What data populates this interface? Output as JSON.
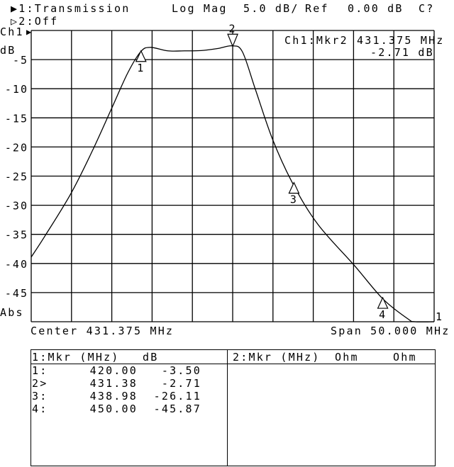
{
  "header": {
    "trace1": "▶1:Transmission",
    "format": "Log Mag",
    "scale": "5.0 dB/",
    "ref_label": "Ref",
    "ref_value": "0.00 dB",
    "status": "C?",
    "trace2": "▷2:Off"
  },
  "axis": {
    "channel": "Ch1",
    "ref_arrow": "▶",
    "unit": "dB",
    "mode": "Abs",
    "center": "Center 431.375 MHz",
    "span": "Span 50.000 MHz"
  },
  "readout": {
    "label": "Ch1:Mkr2",
    "freq": "431.375 MHz",
    "value": "-2.71 dB"
  },
  "trace_end_label": "1",
  "table": {
    "left_header": {
      "mkr": "1:Mkr (MHz)",
      "unit": "dB"
    },
    "right_header": {
      "mkr": "2:Mkr (MHz)",
      "unit1": "Ohm",
      "unit2": "Ohm"
    },
    "rows": [
      {
        "id": "1:",
        "freq": "420.00",
        "value": "-3.50"
      },
      {
        "id": "2>",
        "freq": "431.38",
        "value": "-2.71"
      },
      {
        "id": "3:",
        "freq": "438.98",
        "value": "-26.11"
      },
      {
        "id": "4:",
        "freq": "450.00",
        "value": "-45.87"
      }
    ]
  },
  "chart_data": {
    "type": "line",
    "title": "",
    "xlabel": "",
    "ylabel": "dB",
    "xlim": [
      406.375,
      456.375
    ],
    "ylim": [
      -50,
      0
    ],
    "x_divisions": 10,
    "y_divisions": 10,
    "grid": true,
    "yticks": [
      "-5",
      "-10",
      "-15",
      "-20",
      "-25",
      "-30",
      "-35",
      "-40",
      "-45"
    ],
    "series": [
      {
        "color": "#000000",
        "x": [
          406.375,
          408.07,
          411.3,
          413.95,
          416.35,
          418.35,
          419.96,
          421.14,
          423.34,
          425.4,
          427.44,
          429.5,
          431.31,
          432.58,
          434.19,
          436.33,
          438.88,
          441.96,
          446.51,
          450.03,
          453.11,
          453.99,
          456.375
        ],
        "y": [
          -38.9,
          -35.3,
          -28.0,
          -20.7,
          -13.4,
          -7.3,
          -3.65,
          -2.9,
          -3.5,
          -3.5,
          -3.45,
          -3.1,
          -2.64,
          -3.65,
          -10.1,
          -18.7,
          -26.4,
          -33.3,
          -40.4,
          -46.1,
          -49.5,
          -50.5,
          -51
        ]
      }
    ],
    "markers": [
      {
        "label": "1",
        "x": 420.0,
        "y": -3.5,
        "active": false
      },
      {
        "label": "2",
        "x": 431.38,
        "y": -2.71,
        "active": true
      },
      {
        "label": "3",
        "x": 438.98,
        "y": -26.11,
        "active": false
      },
      {
        "label": "4",
        "x": 450.0,
        "y": -45.87,
        "active": false
      }
    ]
  }
}
